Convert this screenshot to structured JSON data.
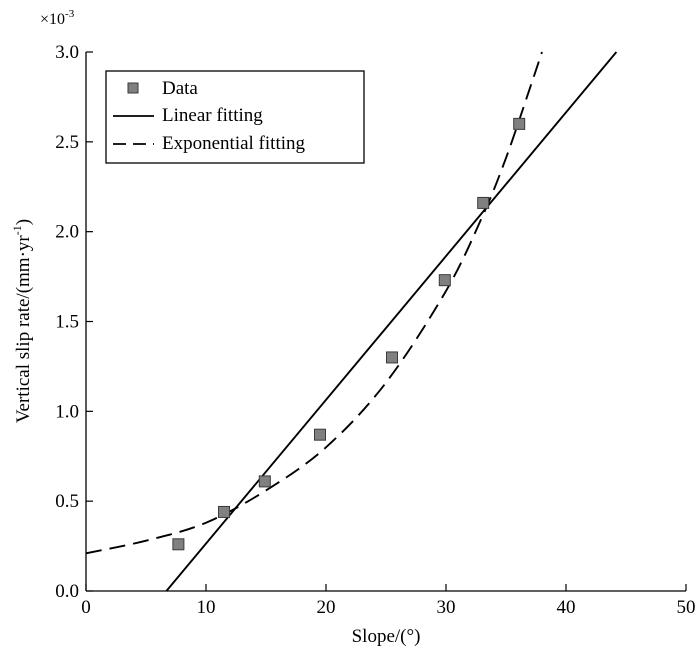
{
  "chart_data": {
    "type": "scatter",
    "title": "",
    "xlabel": "Slope/(°)",
    "ylabel": "Vertical slip rate/(mm·yr",
    "ylabel_sup": "-1",
    "ylabel_close": ")",
    "y_multiplier_base": "×10",
    "y_multiplier_exp": "-3",
    "xlim": [
      0,
      50
    ],
    "ylim": [
      0,
      3.0
    ],
    "x_ticks": [
      0,
      10,
      20,
      30,
      40,
      50
    ],
    "x_tick_labels": [
      "0",
      "10",
      "20",
      "30",
      "40",
      "50"
    ],
    "y_ticks": [
      0,
      0.5,
      1.0,
      1.5,
      2.0,
      2.5,
      3.0
    ],
    "y_tick_labels": [
      "0.0",
      "0.5",
      "1.0",
      "1.5",
      "2.0",
      "2.5",
      "3.0"
    ],
    "grid": false,
    "legend_position": "top-left",
    "series": [
      {
        "name": "Data",
        "kind": "markers",
        "x": [
          7.7,
          11.5,
          14.9,
          19.5,
          25.5,
          29.9,
          33.1,
          36.1
        ],
        "y": [
          0.26,
          0.44,
          0.61,
          0.87,
          1.3,
          1.73,
          2.16,
          2.6
        ]
      },
      {
        "name": "Linear fitting",
        "kind": "solid-line",
        "x": [
          6.7,
          44.2
        ],
        "y": [
          0.0,
          3.0
        ]
      },
      {
        "name": "Exponential fitting",
        "kind": "dashed-line",
        "x": [
          0,
          5,
          10,
          15,
          20,
          25,
          30,
          33,
          35,
          37,
          38
        ],
        "y": [
          0.21,
          0.28,
          0.38,
          0.56,
          0.8,
          1.16,
          1.67,
          2.08,
          2.41,
          2.8,
          3.0
        ]
      }
    ],
    "colors": {
      "marker_fill": "#808080",
      "marker_stroke": "#3a3a3a",
      "line": "#000000"
    }
  }
}
